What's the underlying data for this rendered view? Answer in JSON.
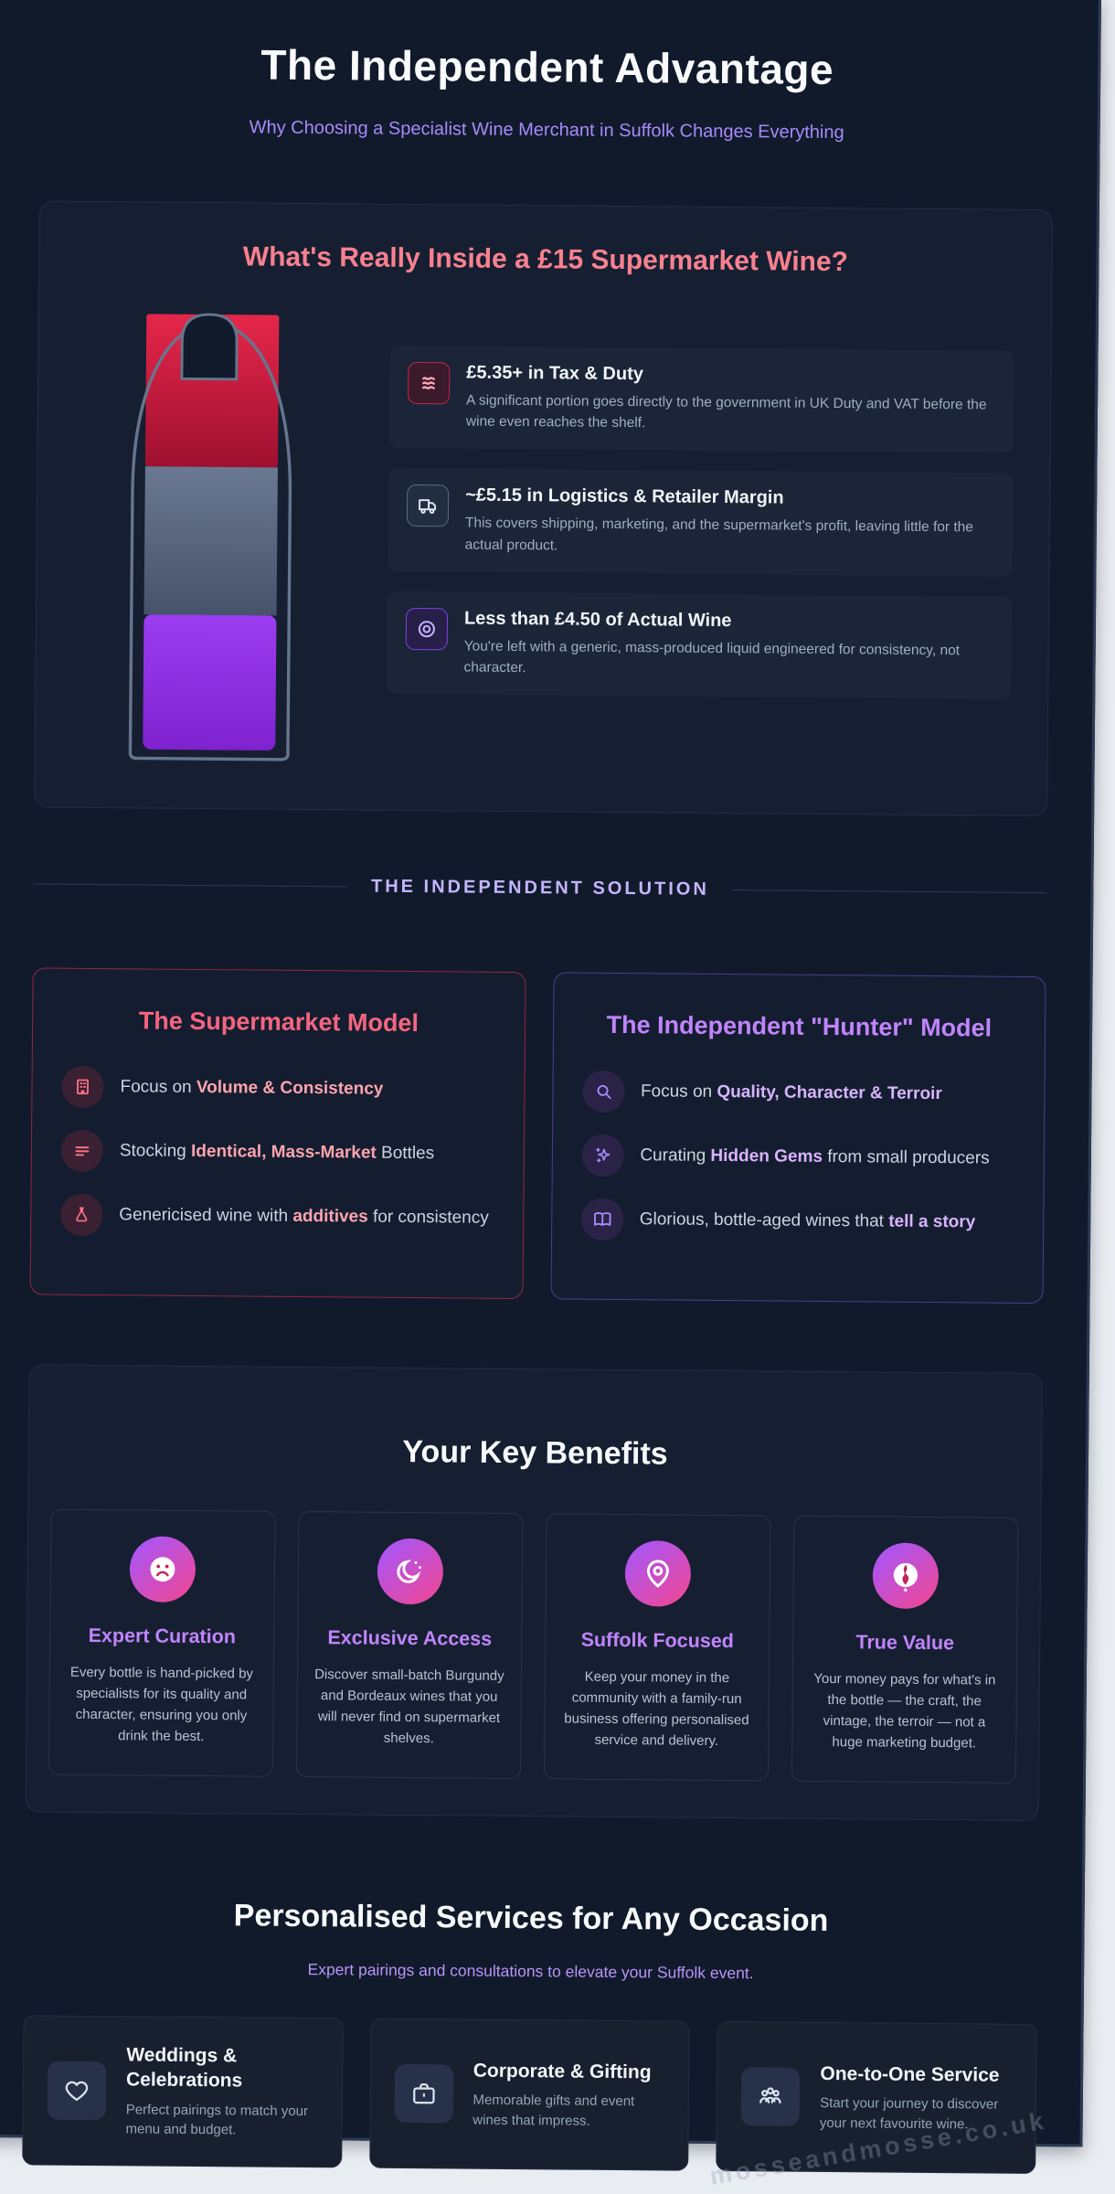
{
  "page": {
    "title": "The Independent Advantage",
    "subtitle": "Why Choosing a Specialist Wine Merchant in Suffolk Changes Everything",
    "watermark": "mosseandmosse.co.uk"
  },
  "breakdown_card": {
    "title": "What's Really Inside a £15 Supermarket Wine?",
    "items": [
      {
        "icon": "banknote-stack-icon",
        "title": "£5.35+ in Tax & Duty",
        "description": "A significant portion goes directly to the government in UK Duty and VAT before the wine even reaches the shelf.",
        "color": "#e11d48"
      },
      {
        "icon": "truck-icon",
        "title": "~£5.15 in Logistics & Retailer Margin",
        "description": "This covers shipping, marketing, and the supermarket's profit, leaving little for the actual product.",
        "color": "#64748b"
      },
      {
        "icon": "target-icon",
        "title": "Less than £4.50 of Actual Wine",
        "description": "You're left with a generic, mass-produced liquid engineered for consistency, not character.",
        "color": "#8b5cf6"
      }
    ]
  },
  "bottle": {
    "segments": [
      {
        "label": "tax",
        "pct": 35,
        "color_top": "#e5274a",
        "color_bottom": "#9f1030"
      },
      {
        "label": "logistics",
        "pct": 34,
        "color_top": "#6b7891",
        "color_bottom": "#46536a"
      },
      {
        "label": "wine",
        "pct": 31,
        "color_top": "#9b3df0",
        "color_bottom": "#7f22cf"
      }
    ]
  },
  "divider": {
    "label": "THE INDEPENDENT SOLUTION"
  },
  "models": {
    "supermarket": {
      "title": "The Supermarket Model",
      "items": [
        {
          "icon": "building-icon",
          "prefix": "Focus on ",
          "highlight": "Volume & Consistency",
          "suffix": ""
        },
        {
          "icon": "list-lines-icon",
          "prefix": "Stocking ",
          "highlight": "Identical, Mass-Market",
          "suffix": " Bottles"
        },
        {
          "icon": "flask-icon",
          "prefix": "Genericised wine with ",
          "highlight": "additives",
          "suffix": " for consistency"
        }
      ]
    },
    "hunter": {
      "title": "The Independent \"Hunter\" Model",
      "items": [
        {
          "icon": "search-icon",
          "prefix": "Focus on ",
          "highlight": "Quality, Character & Terroir",
          "suffix": ""
        },
        {
          "icon": "sparkles-icon",
          "prefix": "Curating ",
          "highlight": "Hidden Gems",
          "suffix": " from small producers"
        },
        {
          "icon": "book-open-icon",
          "prefix": "Glorious, bottle-aged wines that ",
          "highlight": "tell a story",
          "suffix": ""
        }
      ]
    }
  },
  "benefits": {
    "title": "Your Key Benefits",
    "cards": [
      {
        "icon": "frown-face-icon",
        "title": "Expert Curation",
        "description": "Every bottle is hand-picked by specialists for its quality and character, ensuring you only drink the best."
      },
      {
        "icon": "moon-stars-icon",
        "title": "Exclusive Access",
        "description": "Discover small-batch Burgundy and Bordeaux wines that you will never find on supermarket shelves."
      },
      {
        "icon": "map-pin-icon",
        "title": "Suffolk Focused",
        "description": "Keep your money in the community with a family-run business offering personalised service and delivery."
      },
      {
        "icon": "gem-icon",
        "title": "True Value",
        "description": "Your money pays for what's in the bottle — the craft, the vintage, the terroir — not a huge marketing budget."
      }
    ]
  },
  "services": {
    "title": "Personalised Services for Any Occasion",
    "subtitle": "Expert pairings and consultations to elevate your Suffolk event.",
    "cards": [
      {
        "icon": "heart-icon",
        "title": "Weddings & Celebrations",
        "description": "Perfect pairings to match your menu and budget."
      },
      {
        "icon": "briefcase-icon",
        "title": "Corporate & Gifting",
        "description": "Memorable gifts and event wines that impress."
      },
      {
        "icon": "users-icon",
        "title": "One-to-One Service",
        "description": "Start your journey to discover your next favourite wine."
      }
    ]
  },
  "accent_colors": {
    "page_bg": "#111a2b",
    "pink_heading": "#f8818f",
    "purple_heading": "#c084fc",
    "gradient_start": "#a855f7",
    "gradient_end": "#ec4899"
  }
}
